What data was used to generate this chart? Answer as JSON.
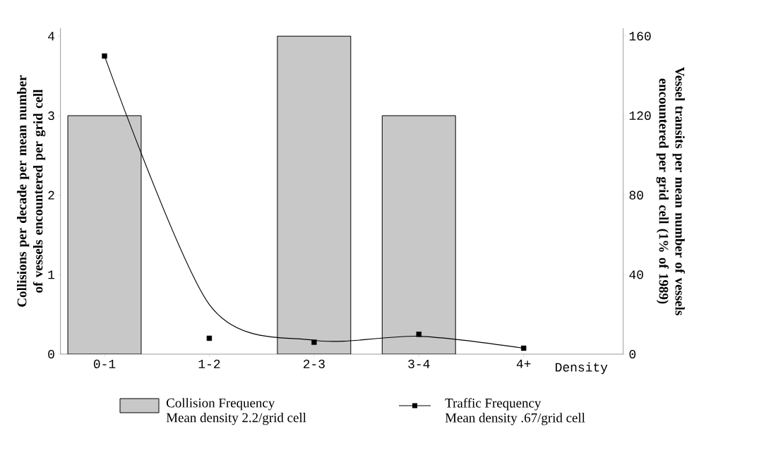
{
  "chart_data": {
    "type": "bar",
    "xlabel": "Density",
    "ylabel": "Collisions per decade per mean number of vessels encountered per grid cell",
    "y2label": "Vessel transits per mean number of vessels encountered per grid cell (1% of 1989)",
    "categories": [
      "0-1",
      "1-2",
      "2-3",
      "3-4",
      "4+"
    ],
    "series": [
      {
        "name": "Collision Frequency",
        "color": "#c8c8c8",
        "values": [
          3,
          0,
          4,
          3,
          0
        ]
      },
      {
        "type": "scatter",
        "axis": "y2",
        "color": "#000000",
        "marker": "square",
        "values": [
          150,
          8,
          6,
          10,
          3
        ]
      },
      {
        "name": "Traffic Frequency",
        "type": "line",
        "axis": "y2",
        "color": "#000000",
        "marker": "none",
        "values": [
          150,
          25,
          7,
          9,
          3
        ]
      }
    ],
    "ylim": [
      0,
      4.1
    ],
    "yticks": [
      0,
      1,
      2,
      3,
      4
    ],
    "y2lim": [
      0,
      164
    ],
    "y2ticks": [
      0,
      40,
      80,
      120,
      160
    ],
    "legend": "bottom",
    "grid": false,
    "annotations": [
      "Mean density 2.2/grid cell",
      "Mean density .67/grid cell"
    ]
  }
}
